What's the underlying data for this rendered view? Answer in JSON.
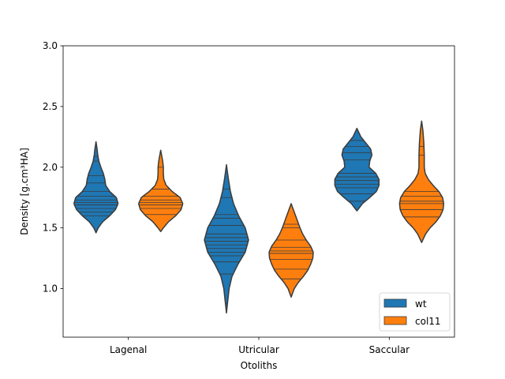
{
  "chart_data": {
    "type": "violin",
    "xlabel": "Otoliths",
    "ylabel": "Density [g.cm³HA]",
    "ylim": [
      0.6,
      3.0
    ],
    "yticks": [
      1.0,
      1.5,
      2.0,
      2.5,
      3.0
    ],
    "ytick_labels": [
      "1.0",
      "1.5",
      "2.0",
      "2.5",
      "3.0"
    ],
    "categories": [
      "Lagenal",
      "Utricular",
      "Saccular"
    ],
    "legend": {
      "placement": "lower-right"
    },
    "series": [
      {
        "name": "wt",
        "color": "#1f77b4",
        "violins": [
          {
            "category": "Lagenal",
            "min": 1.46,
            "max": 2.21,
            "profile": [
              [
                1.46,
                0.0
              ],
              [
                1.5,
                0.1
              ],
              [
                1.55,
                0.3
              ],
              [
                1.6,
                0.62
              ],
              [
                1.65,
                0.88
              ],
              [
                1.7,
                1.0
              ],
              [
                1.75,
                0.92
              ],
              [
                1.8,
                0.62
              ],
              [
                1.85,
                0.44
              ],
              [
                1.9,
                0.4
              ],
              [
                1.95,
                0.33
              ],
              [
                2.0,
                0.22
              ],
              [
                2.05,
                0.13
              ],
              [
                2.1,
                0.08
              ],
              [
                2.15,
                0.05
              ],
              [
                2.21,
                0.0
              ]
            ],
            "points": [
              1.6,
              1.63,
              1.66,
              1.69,
              1.71,
              1.73,
              1.76,
              1.8,
              1.87,
              1.93,
              2.05,
              2.09
            ]
          },
          {
            "category": "Utricular",
            "min": 0.8,
            "max": 2.02,
            "profile": [
              [
                0.8,
                0.0
              ],
              [
                0.9,
                0.06
              ],
              [
                1.0,
                0.12
              ],
              [
                1.1,
                0.25
              ],
              [
                1.2,
                0.52
              ],
              [
                1.3,
                0.85
              ],
              [
                1.4,
                1.0
              ],
              [
                1.5,
                0.85
              ],
              [
                1.6,
                0.55
              ],
              [
                1.7,
                0.32
              ],
              [
                1.8,
                0.18
              ],
              [
                1.9,
                0.09
              ],
              [
                2.02,
                0.0
              ]
            ],
            "points": [
              0.88,
              1.12,
              1.22,
              1.27,
              1.3,
              1.33,
              1.36,
              1.39,
              1.42,
              1.45,
              1.52,
              1.58,
              1.61,
              1.75,
              1.82
            ]
          },
          {
            "category": "Saccular",
            "min": 1.64,
            "max": 2.32,
            "profile": [
              [
                1.64,
                0.0
              ],
              [
                1.7,
                0.25
              ],
              [
                1.75,
                0.58
              ],
              [
                1.8,
                0.88
              ],
              [
                1.85,
                1.0
              ],
              [
                1.9,
                1.0
              ],
              [
                1.95,
                0.85
              ],
              [
                2.0,
                0.55
              ],
              [
                2.05,
                0.58
              ],
              [
                2.1,
                0.68
              ],
              [
                2.15,
                0.62
              ],
              [
                2.2,
                0.4
              ],
              [
                2.25,
                0.18
              ],
              [
                2.32,
                0.0
              ]
            ],
            "points": [
              1.72,
              1.78,
              1.83,
              1.86,
              1.89,
              1.92,
              1.95,
              2.06,
              2.12,
              2.17,
              2.22
            ]
          }
        ]
      },
      {
        "name": "col11",
        "color": "#ff7f0e",
        "violins": [
          {
            "category": "Lagenal",
            "min": 1.47,
            "max": 2.14,
            "profile": [
              [
                1.47,
                0.0
              ],
              [
                1.5,
                0.12
              ],
              [
                1.55,
                0.35
              ],
              [
                1.6,
                0.68
              ],
              [
                1.65,
                0.92
              ],
              [
                1.7,
                1.0
              ],
              [
                1.75,
                0.88
              ],
              [
                1.8,
                0.52
              ],
              [
                1.85,
                0.25
              ],
              [
                1.9,
                0.14
              ],
              [
                1.95,
                0.12
              ],
              [
                2.0,
                0.12
              ],
              [
                2.05,
                0.09
              ],
              [
                2.14,
                0.0
              ]
            ],
            "points": [
              1.61,
              1.66,
              1.69,
              1.71,
              1.73,
              1.76,
              1.82,
              2.0
            ]
          },
          {
            "category": "Utricular",
            "min": 0.93,
            "max": 1.7,
            "profile": [
              [
                0.93,
                0.0
              ],
              [
                1.0,
                0.14
              ],
              [
                1.05,
                0.32
              ],
              [
                1.1,
                0.55
              ],
              [
                1.15,
                0.75
              ],
              [
                1.2,
                0.88
              ],
              [
                1.25,
                0.98
              ],
              [
                1.3,
                1.0
              ],
              [
                1.35,
                0.88
              ],
              [
                1.4,
                0.68
              ],
              [
                1.45,
                0.52
              ],
              [
                1.5,
                0.4
              ],
              [
                1.55,
                0.3
              ],
              [
                1.6,
                0.2
              ],
              [
                1.65,
                0.1
              ],
              [
                1.7,
                0.0
              ]
            ],
            "points": [
              1.08,
              1.16,
              1.24,
              1.29,
              1.31,
              1.34,
              1.4,
              1.5,
              1.53
            ]
          },
          {
            "category": "Saccular",
            "min": 1.38,
            "max": 2.38,
            "profile": [
              [
                1.38,
                0.0
              ],
              [
                1.45,
                0.18
              ],
              [
                1.5,
                0.38
              ],
              [
                1.55,
                0.65
              ],
              [
                1.6,
                0.85
              ],
              [
                1.65,
                0.97
              ],
              [
                1.7,
                1.0
              ],
              [
                1.75,
                0.95
              ],
              [
                1.8,
                0.78
              ],
              [
                1.85,
                0.52
              ],
              [
                1.9,
                0.3
              ],
              [
                1.95,
                0.16
              ],
              [
                2.0,
                0.12
              ],
              [
                2.1,
                0.12
              ],
              [
                2.2,
                0.1
              ],
              [
                2.3,
                0.06
              ],
              [
                2.38,
                0.0
              ]
            ],
            "points": [
              1.59,
              1.65,
              1.7,
              1.72,
              1.76,
              1.8,
              2.1,
              2.17
            ]
          }
        ]
      }
    ]
  }
}
